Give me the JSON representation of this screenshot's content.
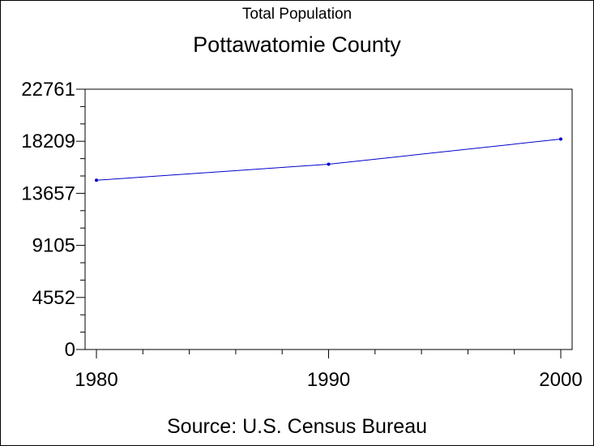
{
  "chart_data": {
    "type": "line",
    "title": "Total Population",
    "subtitle": "Pottawatomie County",
    "source": "Source: U.S. Census Bureau",
    "x": [
      1980,
      1990,
      2000
    ],
    "series": [
      {
        "values": [
          14800,
          16200,
          18400
        ],
        "color": "#0000cc"
      }
    ],
    "xlim": [
      1980,
      2000
    ],
    "ylim": [
      0,
      22761
    ],
    "x_ticks": [
      "1980",
      "1990",
      "2000"
    ],
    "y_ticks": [
      "0",
      "4552",
      "9105",
      "13657",
      "18209",
      "22761"
    ],
    "grid": false
  }
}
